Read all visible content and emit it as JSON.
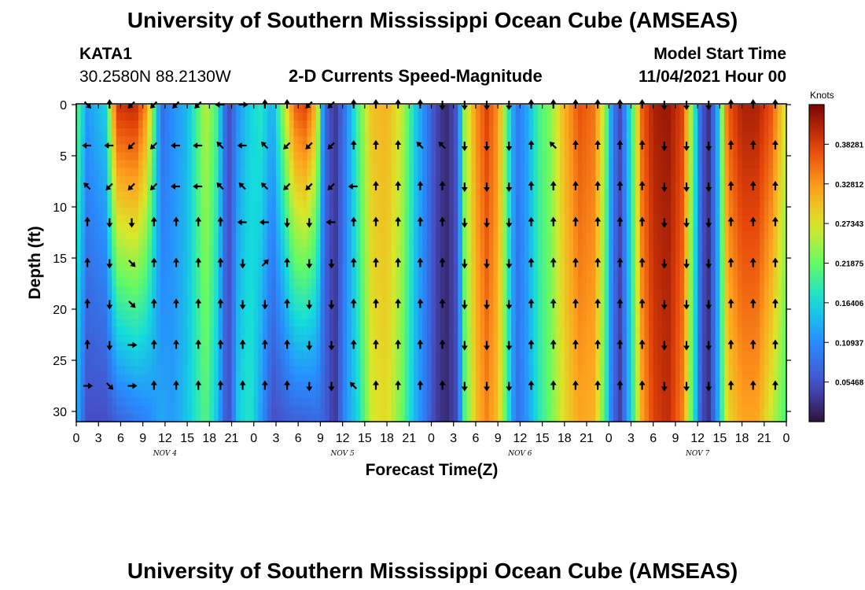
{
  "page": {
    "title_top": "University of Southern Mississippi Ocean Cube (AMSEAS)",
    "title_bottom": "University of Southern Mississippi Ocean Cube (AMSEAS)",
    "station": "KATA1",
    "location": "30.2580N  88.2130W",
    "subtitle": "2-D Currents Speed-Magnitude",
    "model_start_label": "Model Start Time",
    "model_start_value": "11/04/2021 Hour 00"
  },
  "chart_data": {
    "type": "heatmap",
    "title": "2-D Currents Speed-Magnitude",
    "xlabel": "Forecast Time(Z)",
    "ylabel": "Depth (ft)",
    "colorbar_label": "Knots",
    "x_tick_labels": [
      "0",
      "3",
      "6",
      "9",
      "12",
      "15",
      "18",
      "21",
      "0",
      "3",
      "6",
      "9",
      "12",
      "15",
      "18",
      "21",
      "0",
      "3",
      "6",
      "9",
      "12",
      "15",
      "18",
      "21",
      "0",
      "3",
      "6",
      "9",
      "12",
      "15",
      "18",
      "21",
      "0"
    ],
    "x_hours": [
      0,
      3,
      6,
      9,
      12,
      15,
      18,
      21,
      24,
      27,
      30,
      33,
      36,
      39,
      42,
      45,
      48,
      51,
      54,
      57,
      60,
      63,
      66,
      69,
      72,
      75,
      78,
      81,
      84,
      87,
      90,
      93,
      96
    ],
    "xlim": [
      0,
      96
    ],
    "day_labels": [
      {
        "hour": 12,
        "label": "NOV 4"
      },
      {
        "hour": 36,
        "label": "NOV 5"
      },
      {
        "hour": 60,
        "label": "NOV 6"
      },
      {
        "hour": 84,
        "label": "NOV 7"
      }
    ],
    "y_ticks": [
      0,
      5,
      10,
      15,
      20,
      25,
      30
    ],
    "ylim": [
      0,
      31
    ],
    "colorbar_ticks": [
      "0.05468",
      "0.10937",
      "0.16406",
      "0.21875",
      "0.27343",
      "0.32812",
      "0.38281"
    ],
    "colorbar_range": [
      0,
      0.4375
    ],
    "speed_profile": [
      {
        "hour": 0,
        "top": 0.22,
        "bottom": 0.14
      },
      {
        "hour": 1.5,
        "top": 0.12,
        "bottom": 0.05
      },
      {
        "hour": 4,
        "top": 0.16,
        "bottom": 0.05
      },
      {
        "hour": 5.5,
        "top": 0.39,
        "bottom": 0.07
      },
      {
        "hour": 8,
        "top": 0.4,
        "bottom": 0.09
      },
      {
        "hour": 9.5,
        "top": 0.33,
        "bottom": 0.1
      },
      {
        "hour": 11.5,
        "top": 0.08,
        "bottom": 0.13
      },
      {
        "hour": 13,
        "top": 0.11,
        "bottom": 0.12
      },
      {
        "hour": 15,
        "top": 0.14,
        "bottom": 0.15
      },
      {
        "hour": 17.5,
        "top": 0.26,
        "bottom": 0.21
      },
      {
        "hour": 19,
        "top": 0.2,
        "bottom": 0.15
      },
      {
        "hour": 20.5,
        "top": 0.04,
        "bottom": 0.04
      },
      {
        "hour": 22,
        "top": 0.12,
        "bottom": 0.16
      },
      {
        "hour": 23.5,
        "top": 0.16,
        "bottom": 0.18
      },
      {
        "hour": 25,
        "top": 0.18,
        "bottom": 0.12
      },
      {
        "hour": 26.5,
        "top": 0.13,
        "bottom": 0.05
      },
      {
        "hour": 28,
        "top": 0.24,
        "bottom": 0.06
      },
      {
        "hour": 29.5,
        "top": 0.36,
        "bottom": 0.07
      },
      {
        "hour": 31,
        "top": 0.38,
        "bottom": 0.07
      },
      {
        "hour": 32.5,
        "top": 0.3,
        "bottom": 0.08
      },
      {
        "hour": 33.5,
        "top": 0.08,
        "bottom": 0.07
      },
      {
        "hour": 35,
        "top": 0.03,
        "bottom": 0.03
      },
      {
        "hour": 36.5,
        "top": 0.1,
        "bottom": 0.12
      },
      {
        "hour": 38,
        "top": 0.2,
        "bottom": 0.16
      },
      {
        "hour": 40,
        "top": 0.3,
        "bottom": 0.27
      },
      {
        "hour": 42,
        "top": 0.31,
        "bottom": 0.28
      },
      {
        "hour": 44,
        "top": 0.26,
        "bottom": 0.22
      },
      {
        "hour": 46,
        "top": 0.15,
        "bottom": 0.13
      },
      {
        "hour": 47.5,
        "top": 0.09,
        "bottom": 0.08
      },
      {
        "hour": 48.5,
        "top": 0.05,
        "bottom": 0.04
      },
      {
        "hour": 50,
        "top": 0.02,
        "bottom": 0.02
      },
      {
        "hour": 51.5,
        "top": 0.06,
        "bottom": 0.05
      },
      {
        "hour": 52.5,
        "top": 0.24,
        "bottom": 0.2
      },
      {
        "hour": 54,
        "top": 0.33,
        "bottom": 0.3
      },
      {
        "hour": 55.5,
        "top": 0.38,
        "bottom": 0.34
      },
      {
        "hour": 57,
        "top": 0.33,
        "bottom": 0.3
      },
      {
        "hour": 58.5,
        "top": 0.18,
        "bottom": 0.17
      },
      {
        "hour": 59.5,
        "top": 0.09,
        "bottom": 0.08
      },
      {
        "hour": 61,
        "top": 0.13,
        "bottom": 0.12
      },
      {
        "hour": 62.5,
        "top": 0.2,
        "bottom": 0.18
      },
      {
        "hour": 64,
        "top": 0.23,
        "bottom": 0.22
      },
      {
        "hour": 66,
        "top": 0.31,
        "bottom": 0.28
      },
      {
        "hour": 68,
        "top": 0.37,
        "bottom": 0.32
      },
      {
        "hour": 70,
        "top": 0.35,
        "bottom": 0.31
      },
      {
        "hour": 71.5,
        "top": 0.24,
        "bottom": 0.2
      },
      {
        "hour": 72.5,
        "top": 0.1,
        "bottom": 0.08
      },
      {
        "hour": 73.5,
        "top": 0.05,
        "bottom": 0.04
      },
      {
        "hour": 75,
        "top": 0.18,
        "bottom": 0.16
      },
      {
        "hour": 76.5,
        "top": 0.36,
        "bottom": 0.32
      },
      {
        "hour": 78,
        "top": 0.41,
        "bottom": 0.38
      },
      {
        "hour": 80,
        "top": 0.42,
        "bottom": 0.4
      },
      {
        "hour": 82,
        "top": 0.38,
        "bottom": 0.34
      },
      {
        "hour": 83.5,
        "top": 0.2,
        "bottom": 0.18
      },
      {
        "hour": 84.5,
        "top": 0.06,
        "bottom": 0.05
      },
      {
        "hour": 85.5,
        "top": 0.03,
        "bottom": 0.03
      },
      {
        "hour": 86.5,
        "top": 0.1,
        "bottom": 0.1
      },
      {
        "hour": 88,
        "top": 0.36,
        "bottom": 0.28
      },
      {
        "hour": 90,
        "top": 0.41,
        "bottom": 0.32
      },
      {
        "hour": 92,
        "top": 0.41,
        "bottom": 0.32
      },
      {
        "hour": 94,
        "top": 0.37,
        "bottom": 0.26
      },
      {
        "hour": 96,
        "top": 0.26,
        "bottom": 0.2
      }
    ],
    "arrow_depths": [
      0,
      4,
      8,
      11.5,
      15.5,
      19.5,
      23.5,
      27.5
    ],
    "arrow_hours": [
      1.5,
      4.5,
      7.5,
      10.5,
      13.5,
      16.5,
      19.5,
      22.5,
      25.5,
      28.5,
      31.5,
      34.5,
      37.5,
      40.5,
      43.5,
      46.5,
      49.5,
      52.5,
      55.5,
      58.5,
      61.5,
      64.5,
      67.5,
      70.5,
      73.5,
      76.5,
      79.5,
      82.5,
      85.5,
      88.5,
      91.5,
      94.5
    ],
    "arrow_directions_deg": [
      [
        135,
        0,
        225,
        225,
        225,
        225,
        270,
        90,
        0,
        0,
        225,
        225,
        0,
        0,
        0,
        0,
        180,
        180,
        180,
        180,
        0,
        0,
        0,
        0,
        0,
        0,
        180,
        180,
        180,
        0,
        0,
        0
      ],
      [
        270,
        270,
        225,
        225,
        270,
        270,
        315,
        270,
        315,
        225,
        225,
        225,
        0,
        0,
        0,
        315,
        315,
        180,
        180,
        180,
        0,
        315,
        0,
        0,
        0,
        0,
        180,
        180,
        180,
        0,
        0,
        0
      ],
      [
        315,
        225,
        225,
        225,
        270,
        270,
        315,
        315,
        315,
        225,
        225,
        225,
        270,
        0,
        0,
        0,
        0,
        180,
        180,
        180,
        0,
        0,
        0,
        0,
        0,
        0,
        180,
        180,
        180,
        0,
        0,
        0
      ],
      [
        0,
        180,
        180,
        0,
        0,
        0,
        0,
        270,
        270,
        180,
        180,
        270,
        0,
        0,
        0,
        0,
        0,
        180,
        180,
        180,
        0,
        0,
        0,
        0,
        0,
        0,
        180,
        180,
        180,
        0,
        0,
        0
      ],
      [
        0,
        180,
        135,
        0,
        0,
        0,
        0,
        180,
        45,
        0,
        180,
        180,
        0,
        0,
        0,
        0,
        0,
        180,
        180,
        180,
        0,
        0,
        0,
        0,
        0,
        0,
        180,
        180,
        180,
        0,
        0,
        0
      ],
      [
        0,
        180,
        135,
        0,
        0,
        0,
        0,
        180,
        180,
        0,
        180,
        180,
        0,
        0,
        0,
        0,
        0,
        180,
        180,
        180,
        0,
        0,
        0,
        0,
        0,
        0,
        180,
        180,
        180,
        0,
        0,
        0
      ],
      [
        0,
        180,
        90,
        0,
        0,
        0,
        0,
        0,
        0,
        0,
        180,
        180,
        0,
        0,
        0,
        0,
        0,
        180,
        180,
        180,
        0,
        0,
        0,
        0,
        0,
        0,
        180,
        180,
        180,
        0,
        0,
        0
      ],
      [
        90,
        135,
        90,
        0,
        0,
        0,
        0,
        0,
        0,
        0,
        180,
        180,
        315,
        0,
        0,
        0,
        0,
        180,
        180,
        180,
        0,
        0,
        0,
        0,
        0,
        0,
        180,
        180,
        180,
        0,
        0,
        0
      ]
    ]
  }
}
